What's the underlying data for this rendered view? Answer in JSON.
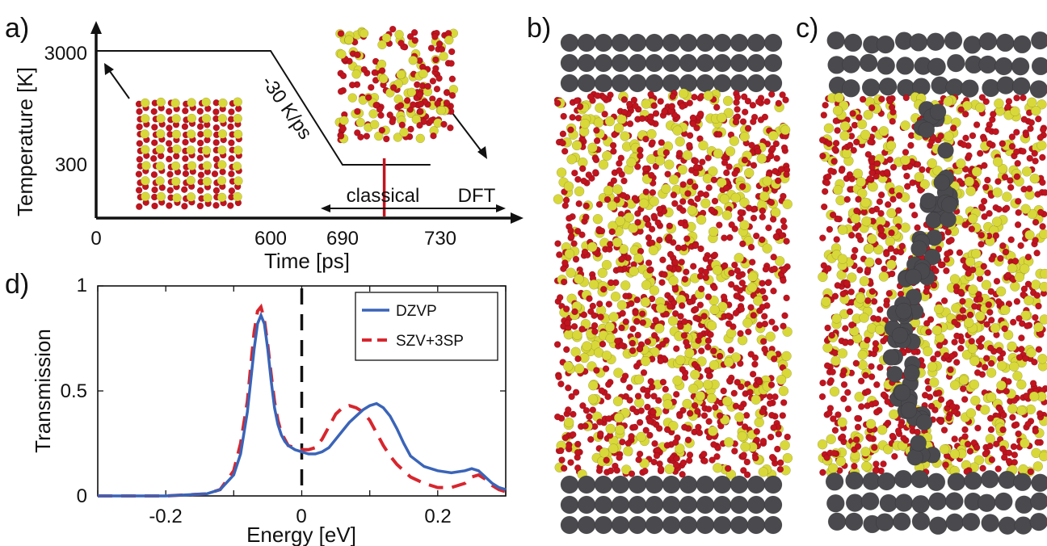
{
  "panels": {
    "a": "a)",
    "b": "b)",
    "c": "c)",
    "d": "d)"
  },
  "colors": {
    "oxygen": "#c0141f",
    "silicon": "#d8d83a",
    "metal": "#4a4a4e",
    "series_dzvp": "#3a64b8",
    "series_szv": "#d7262e",
    "schedule_marker": "#c0141f"
  },
  "chart_data": [
    {
      "type": "line",
      "panel": "a)",
      "xlabel": "Time [ps]",
      "ylabel": "Temperature [K]",
      "x_ticks": [
        0,
        600,
        690,
        730
      ],
      "y_ticks": [
        300,
        3000
      ],
      "series": [
        {
          "values": [
            [
              0,
              3000
            ],
            [
              600,
              3000
            ],
            [
              690,
              300
            ],
            [
              800,
              300
            ]
          ]
        }
      ],
      "annotations": {
        "rate": "-30 K/ps",
        "classical": "classical",
        "dft": "DFT",
        "switch_time": 730
      }
    },
    {
      "type": "line",
      "panel": "d)",
      "xlabel": "Energy [eV]",
      "ylabel": "Transmission",
      "xlim": [
        -0.3,
        0.3
      ],
      "ylim": [
        0,
        1
      ],
      "x_ticks": [
        -0.2,
        0,
        0.2
      ],
      "y_ticks": [
        0,
        0.5,
        1
      ],
      "legend_position": "top-right",
      "fermi_level": 0,
      "series": [
        {
          "name": "DZVP",
          "style": "solid",
          "x": [
            -0.3,
            -0.2,
            -0.14,
            -0.12,
            -0.1,
            -0.09,
            -0.08,
            -0.075,
            -0.07,
            -0.065,
            -0.06,
            -0.055,
            -0.05,
            -0.045,
            -0.04,
            -0.035,
            -0.03,
            -0.025,
            -0.02,
            -0.01,
            0,
            0.01,
            0.02,
            0.03,
            0.04,
            0.05,
            0.06,
            0.07,
            0.08,
            0.09,
            0.1,
            0.11,
            0.12,
            0.13,
            0.14,
            0.15,
            0.16,
            0.18,
            0.2,
            0.22,
            0.24,
            0.25,
            0.26,
            0.27,
            0.28,
            0.29,
            0.3
          ],
          "y": [
            0.0,
            0.0,
            0.01,
            0.03,
            0.1,
            0.2,
            0.4,
            0.55,
            0.7,
            0.82,
            0.86,
            0.82,
            0.7,
            0.55,
            0.42,
            0.34,
            0.29,
            0.26,
            0.24,
            0.22,
            0.21,
            0.2,
            0.2,
            0.21,
            0.23,
            0.27,
            0.31,
            0.35,
            0.38,
            0.41,
            0.43,
            0.44,
            0.42,
            0.38,
            0.32,
            0.25,
            0.19,
            0.14,
            0.12,
            0.11,
            0.12,
            0.13,
            0.12,
            0.09,
            0.06,
            0.04,
            0.03
          ]
        },
        {
          "name": "SZV+3SP",
          "style": "dashed",
          "x": [
            -0.3,
            -0.2,
            -0.14,
            -0.12,
            -0.1,
            -0.09,
            -0.08,
            -0.075,
            -0.07,
            -0.065,
            -0.06,
            -0.055,
            -0.05,
            -0.045,
            -0.04,
            -0.035,
            -0.03,
            -0.025,
            -0.02,
            -0.01,
            0,
            0.01,
            0.02,
            0.03,
            0.04,
            0.05,
            0.06,
            0.07,
            0.08,
            0.09,
            0.1,
            0.11,
            0.12,
            0.13,
            0.14,
            0.15,
            0.16,
            0.18,
            0.2,
            0.22,
            0.24,
            0.25,
            0.26,
            0.27,
            0.28,
            0.29,
            0.3
          ],
          "y": [
            0.0,
            0.0,
            0.01,
            0.03,
            0.12,
            0.25,
            0.45,
            0.62,
            0.78,
            0.88,
            0.9,
            0.84,
            0.72,
            0.58,
            0.45,
            0.36,
            0.3,
            0.27,
            0.24,
            0.23,
            0.22,
            0.22,
            0.23,
            0.27,
            0.33,
            0.39,
            0.42,
            0.43,
            0.42,
            0.4,
            0.36,
            0.3,
            0.24,
            0.19,
            0.15,
            0.12,
            0.09,
            0.06,
            0.04,
            0.04,
            0.06,
            0.09,
            0.1,
            0.08,
            0.05,
            0.03,
            0.02
          ]
        }
      ]
    }
  ]
}
